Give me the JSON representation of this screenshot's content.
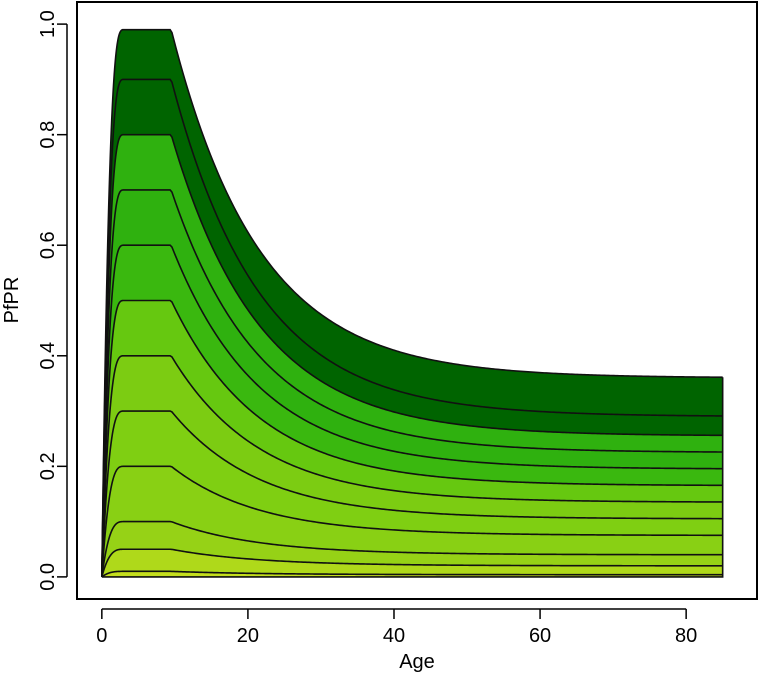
{
  "chart_data": {
    "type": "area",
    "title": "",
    "xlabel": "Age",
    "ylabel": "PfPR",
    "xlim": [
      -3.4,
      89.7
    ],
    "ylim": [
      -0.04,
      1.04
    ],
    "xticks": [
      0,
      20,
      40,
      60,
      80
    ],
    "xtick_labels": [
      "0",
      "20",
      "40",
      "60",
      "80"
    ],
    "yticks": [
      0.0,
      0.2,
      0.4,
      0.6,
      0.8,
      1.0
    ],
    "ytick_labels": [
      "0.0",
      "0.2",
      "0.4",
      "0.6",
      "0.8",
      "1.0"
    ],
    "x_max": 85,
    "peak_plateau_ages": [
      3,
      9.5
    ],
    "decay_rate_per_year": 0.083,
    "curve_style": "saturating rise to a plateau at ages 3–9.5, then exponential decay toward an adult asymptote",
    "curves": [
      {
        "peak": 0.99,
        "adult": 0.36
      },
      {
        "peak": 0.9,
        "adult": 0.29
      },
      {
        "peak": 0.8,
        "adult": 0.255
      },
      {
        "peak": 0.7,
        "adult": 0.225
      },
      {
        "peak": 0.6,
        "adult": 0.195
      },
      {
        "peak": 0.5,
        "adult": 0.165
      },
      {
        "peak": 0.4,
        "adult": 0.135
      },
      {
        "peak": 0.3,
        "adult": 0.105
      },
      {
        "peak": 0.2,
        "adult": 0.075
      },
      {
        "peak": 0.1,
        "adult": 0.04
      },
      {
        "peak": 0.05,
        "adult": 0.02
      },
      {
        "peak": 0.01,
        "adult": 0.004
      }
    ],
    "band_colors": [
      "#006400",
      "#006400",
      "#2fb10f",
      "#2fb10f",
      "#3ab80f",
      "#66c810",
      "#7ccc12",
      "#7fcf12",
      "#89d014",
      "#96d216",
      "#afd91a",
      "#c4de1e"
    ],
    "grid": false,
    "legend": "none"
  }
}
